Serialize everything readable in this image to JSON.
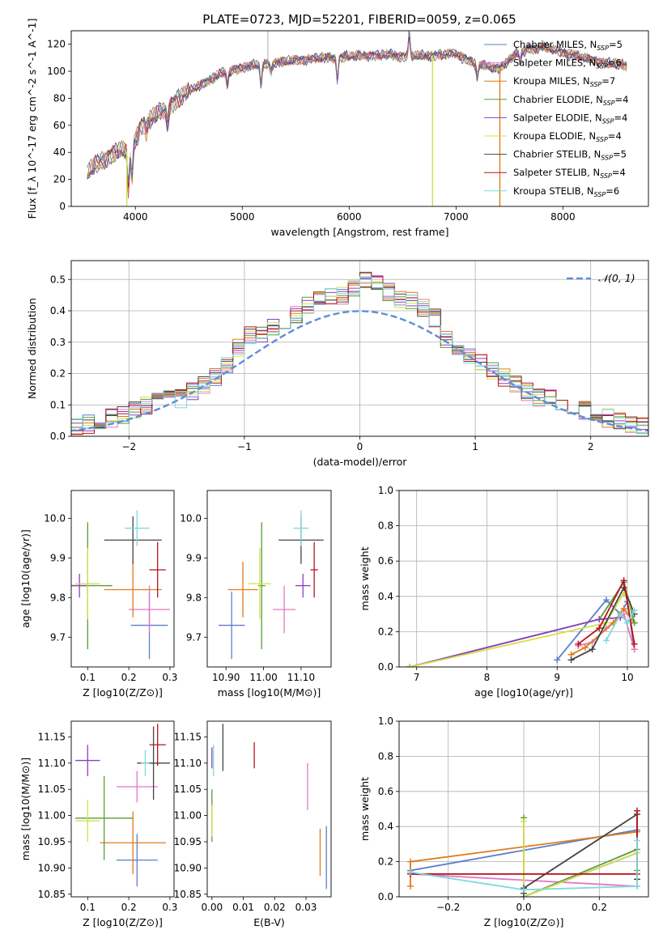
{
  "figure_title": "PLATE=0723, MJD=52201, FIBERID=0059, z=0.065",
  "models": [
    {
      "label": "Chabrier MILES, N$_{SSP}$=5",
      "name": "Chabrier MILES",
      "nssp": "5",
      "color": "#5b7ec9"
    },
    {
      "label": "Salpeter MILES, N$_{SSP}$=6",
      "name": "Salpeter MILES",
      "nssp": "6",
      "color": "#e377c2"
    },
    {
      "label": "Kroupa MILES, N$_{SSP}$=7",
      "name": "Kroupa MILES",
      "nssp": "7",
      "color": "#e07b1a"
    },
    {
      "label": "Chabrier ELODIE, N$_{SSP}$=4",
      "name": "Chabrier ELODIE",
      "nssp": "4",
      "color": "#5a9a3a"
    },
    {
      "label": "Salpeter ELODIE, N$_{SSP}$=4",
      "name": "Salpeter ELODIE",
      "nssp": "4",
      "color": "#8e3fbf"
    },
    {
      "label": "Kroupa ELODIE, N$_{SSP}$=4",
      "name": "Kroupa ELODIE",
      "nssp": "4",
      "color": "#d2e04a"
    },
    {
      "label": "Chabrier STELIB, N$_{SSP}$=5",
      "name": "Chabrier STELIB",
      "nssp": "5",
      "color": "#444444"
    },
    {
      "label": "Salpeter STELIB, N$_{SSP}$=4",
      "name": "Salpeter STELIB",
      "nssp": "4",
      "color": "#b5141c"
    },
    {
      "label": "Kroupa STELIB, N$_{SSP}$=6",
      "name": "Kroupa STELIB",
      "nssp": "6",
      "color": "#7fd8e0"
    }
  ],
  "chart_data": [
    {
      "id": "spectrum",
      "type": "line",
      "xlabel": "wavelength [Angstrom, rest frame]",
      "ylabel": "Flux [f_λ 10^-17 erg cm^-2 s^-1 A^-1]",
      "xlim": [
        3400,
        8800
      ],
      "ylim": [
        0,
        130
      ],
      "xticks": [
        4000,
        5000,
        6000,
        7000,
        8000
      ],
      "yticks": [
        0,
        20,
        40,
        60,
        80,
        100,
        120
      ],
      "grid": false,
      "legend": "top-right",
      "continuum": [
        [
          3550,
          25
        ],
        [
          3700,
          35
        ],
        [
          3850,
          42
        ],
        [
          3950,
          40
        ],
        [
          4050,
          60
        ],
        [
          4150,
          65
        ],
        [
          4250,
          70
        ],
        [
          4400,
          80
        ],
        [
          4600,
          90
        ],
        [
          4800,
          98
        ],
        [
          5000,
          103
        ],
        [
          5200,
          105
        ],
        [
          5400,
          107
        ],
        [
          5600,
          109
        ],
        [
          5800,
          110
        ],
        [
          6000,
          111
        ],
        [
          6200,
          112
        ],
        [
          6400,
          112
        ],
        [
          6600,
          111
        ],
        [
          6800,
          112
        ],
        [
          7000,
          113
        ],
        [
          7200,
          105
        ],
        [
          7400,
          102
        ],
        [
          7600,
          115
        ],
        [
          7800,
          118
        ],
        [
          8000,
          114
        ],
        [
          8200,
          110
        ],
        [
          8400,
          106
        ],
        [
          8600,
          104
        ]
      ],
      "features": [
        [
          3934,
          -30
        ],
        [
          3969,
          -22
        ],
        [
          4102,
          -8
        ],
        [
          4300,
          -12
        ],
        [
          4861,
          -10
        ],
        [
          5175,
          -14
        ],
        [
          5270,
          -6
        ],
        [
          5890,
          -16
        ],
        [
          6563,
          15
        ],
        [
          7200,
          -10
        ],
        [
          7600,
          -8
        ]
      ],
      "dropouts": [
        [
          3920,
          "#d2e04a"
        ],
        [
          6780,
          "#d2e04a"
        ],
        [
          7410,
          "#e07b1a"
        ]
      ],
      "spikes": [
        [
          5240,
          130
        ],
        [
          6580,
          117
        ]
      ]
    },
    {
      "id": "residual-hist",
      "type": "area",
      "xlabel": "(data-model)/error",
      "ylabel": "Normed distribution",
      "xlim": [
        -2.5,
        2.5
      ],
      "ylim": [
        0,
        0.56
      ],
      "xticks": [
        -2,
        -1,
        0,
        1,
        2
      ],
      "yticks": [
        0.0,
        0.1,
        0.2,
        0.3,
        0.4,
        0.5
      ],
      "grid": true,
      "legend": "top-right",
      "reference_curve": {
        "label": "𝒩(0, 1)",
        "mean": 0,
        "sigma": 1,
        "color": "#5b8fd9"
      },
      "bin_width": 0.1
    },
    {
      "id": "age-vs-Z",
      "type": "scatter",
      "xlabel": "Z [log10(Z/Z⊙)]",
      "ylabel": "age  [log10(age/yr)]",
      "xlim": [
        0.06,
        0.31
      ],
      "ylim": [
        9.625,
        10.07
      ],
      "xticks": [
        0.1,
        0.2,
        0.3
      ],
      "yticks": [
        9.7,
        9.8,
        9.9,
        10.0
      ],
      "grid": false,
      "points": [
        {
          "model": 0,
          "x": 0.25,
          "y": 9.73,
          "xerr": 0.045,
          "yerr": 0.085
        },
        {
          "model": 1,
          "x": 0.25,
          "y": 9.77,
          "xerr": 0.05,
          "yerr": 0.06
        },
        {
          "model": 2,
          "x": 0.21,
          "y": 9.82,
          "xerr": 0.07,
          "yerr": 0.07
        },
        {
          "model": 3,
          "x": 0.1,
          "y": 9.83,
          "xerr": 0.06,
          "yerr": 0.16
        },
        {
          "model": 4,
          "x": 0.08,
          "y": 9.83,
          "xerr": 0.02,
          "yerr": 0.03
        },
        {
          "model": 5,
          "x": 0.1,
          "y": 9.835,
          "xerr": 0.03,
          "yerr": 0.09
        },
        {
          "model": 6,
          "x": 0.21,
          "y": 9.945,
          "xerr": 0.07,
          "yerr": 0.06
        },
        {
          "model": 7,
          "x": 0.27,
          "y": 9.87,
          "xerr": 0.02,
          "yerr": 0.07
        },
        {
          "model": 8,
          "x": 0.22,
          "y": 9.975,
          "xerr": 0.03,
          "yerr": 0.045
        }
      ]
    },
    {
      "id": "age-vs-mass",
      "type": "scatter",
      "xlabel": "mass [log10(M/M⊙)]",
      "ylabel": "",
      "xlim": [
        10.85,
        11.18
      ],
      "ylim": [
        9.625,
        10.07
      ],
      "xticks": [
        10.9,
        11.0,
        11.1
      ],
      "yticks": [
        9.7,
        9.8,
        9.9,
        10.0
      ],
      "grid": false,
      "points": [
        {
          "model": 0,
          "x": 10.915,
          "y": 9.73,
          "xerr": 0.035,
          "yerr": 0.085
        },
        {
          "model": 1,
          "x": 11.055,
          "y": 9.77,
          "xerr": 0.03,
          "yerr": 0.06
        },
        {
          "model": 2,
          "x": 10.945,
          "y": 9.82,
          "xerr": 0.04,
          "yerr": 0.07
        },
        {
          "model": 3,
          "x": 10.995,
          "y": 9.83,
          "xerr": 0.01,
          "yerr": 0.16
        },
        {
          "model": 4,
          "x": 11.105,
          "y": 9.83,
          "xerr": 0.02,
          "yerr": 0.03
        },
        {
          "model": 5,
          "x": 10.99,
          "y": 9.835,
          "xerr": 0.03,
          "yerr": 0.09
        },
        {
          "model": 6,
          "x": 11.1,
          "y": 9.945,
          "xerr": 0.06,
          "yerr": 0.06
        },
        {
          "model": 7,
          "x": 11.135,
          "y": 9.87,
          "xerr": 0.01,
          "yerr": 0.07
        },
        {
          "model": 8,
          "x": 11.1,
          "y": 9.975,
          "xerr": 0.02,
          "yerr": 0.045
        }
      ]
    },
    {
      "id": "weight-vs-age",
      "type": "line",
      "xlabel": "age  [log10(age/yr)]",
      "ylabel": "mass weight",
      "xlim": [
        6.75,
        10.3
      ],
      "ylim": [
        0,
        1.0
      ],
      "xticks": [
        7,
        8,
        9,
        10
      ],
      "yticks": [
        0.0,
        0.2,
        0.4,
        0.6,
        0.8,
        1.0
      ],
      "grid": true,
      "series": [
        {
          "model": 0,
          "x": [
            9.0,
            9.7,
            9.9,
            10.0,
            10.1
          ],
          "y": [
            0.04,
            0.38,
            0.3,
            0.37,
            0.1
          ]
        },
        {
          "model": 1,
          "x": [
            9.3,
            9.5,
            9.7,
            9.95,
            10.1
          ],
          "y": [
            0.12,
            0.14,
            0.22,
            0.3,
            0.1
          ]
        },
        {
          "model": 2,
          "x": [
            9.2,
            9.4,
            9.8,
            9.95,
            10.1
          ],
          "y": [
            0.07,
            0.11,
            0.25,
            0.33,
            0.25
          ]
        },
        {
          "model": 3,
          "x": [
            6.9,
            9.6,
            9.95,
            10.1
          ],
          "y": [
            0.0,
            0.27,
            0.48,
            0.25
          ]
        },
        {
          "model": 4,
          "x": [
            6.9,
            9.6,
            9.9
          ],
          "y": [
            0.0,
            0.27,
            0.28
          ]
        },
        {
          "model": 5,
          "x": [
            6.9,
            9.7,
            9.95,
            10.1
          ],
          "y": [
            0.0,
            0.25,
            0.42,
            0.3
          ]
        },
        {
          "model": 6,
          "x": [
            9.2,
            9.5,
            9.95,
            10.1
          ],
          "y": [
            0.04,
            0.1,
            0.45,
            0.3
          ]
        },
        {
          "model": 7,
          "x": [
            9.3,
            9.6,
            9.95,
            10.1
          ],
          "y": [
            0.13,
            0.22,
            0.49,
            0.13
          ]
        },
        {
          "model": 8,
          "x": [
            9.7,
            9.9,
            10.0,
            10.1
          ],
          "y": [
            0.15,
            0.3,
            0.25,
            0.32
          ]
        }
      ]
    },
    {
      "id": "mass-vs-Z",
      "type": "scatter",
      "xlabel": "Z [log10(Z/Z⊙)]",
      "ylabel": "mass [log10(M/M⊙)]",
      "xlim": [
        0.06,
        0.31
      ],
      "ylim": [
        10.845,
        11.18
      ],
      "xticks": [
        0.1,
        0.2,
        0.3
      ],
      "yticks": [
        10.85,
        10.9,
        10.95,
        11.0,
        11.05,
        11.1,
        11.15
      ],
      "grid": false,
      "points": [
        {
          "model": 0,
          "x": 0.22,
          "y": 10.915,
          "xerr": 0.05,
          "yerr": 0.05
        },
        {
          "model": 1,
          "x": 0.22,
          "y": 11.055,
          "xerr": 0.05,
          "yerr": 0.03
        },
        {
          "model": 2,
          "x": 0.21,
          "y": 10.948,
          "xerr": 0.08,
          "yerr": 0.06
        },
        {
          "model": 3,
          "x": 0.14,
          "y": 10.995,
          "xerr": 0.07,
          "yerr": 0.08
        },
        {
          "model": 4,
          "x": 0.1,
          "y": 11.105,
          "xerr": 0.03,
          "yerr": 0.03
        },
        {
          "model": 5,
          "x": 0.1,
          "y": 10.99,
          "xerr": 0.03,
          "yerr": 0.04
        },
        {
          "model": 6,
          "x": 0.26,
          "y": 11.1,
          "xerr": 0.04,
          "yerr": 0.07
        },
        {
          "model": 7,
          "x": 0.27,
          "y": 11.135,
          "xerr": 0.02,
          "yerr": 0.04
        },
        {
          "model": 8,
          "x": 0.24,
          "y": 11.1,
          "xerr": 0.01,
          "yerr": 0.025
        }
      ]
    },
    {
      "id": "mass-vs-EBV",
      "type": "scatter",
      "xlabel": "E(B-V)",
      "ylabel": "",
      "xlim": [
        -0.0015,
        0.038
      ],
      "ylim": [
        10.845,
        11.18
      ],
      "xticks": [
        0.0,
        0.01,
        0.02,
        0.03
      ],
      "yticks": [
        10.85,
        10.9,
        10.95,
        11.0,
        11.05,
        11.1,
        11.15
      ],
      "grid": false,
      "points": [
        {
          "model": 0,
          "x": 0.0365,
          "y": 10.92,
          "xerr": 0,
          "yerr": 0.06
        },
        {
          "model": 1,
          "x": 0.0305,
          "y": 11.055,
          "xerr": 0,
          "yerr": 0.045
        },
        {
          "model": 2,
          "x": 0.0345,
          "y": 10.93,
          "xerr": 0,
          "yerr": 0.045
        },
        {
          "model": 3,
          "x": 0.0,
          "y": 11.0,
          "xerr": 0,
          "yerr": 0.05
        },
        {
          "model": 4,
          "x": 0.0,
          "y": 11.11,
          "xerr": 0,
          "yerr": 0.02
        },
        {
          "model": 5,
          "x": 0.0,
          "y": 10.99,
          "xerr": 0,
          "yerr": 0.03
        },
        {
          "model": 6,
          "x": 0.0035,
          "y": 11.13,
          "xerr": 0,
          "yerr": 0.045
        },
        {
          "model": 7,
          "x": 0.0135,
          "y": 11.115,
          "xerr": 0,
          "yerr": 0.025
        },
        {
          "model": 8,
          "x": 0.0005,
          "y": 11.105,
          "xerr": 0,
          "yerr": 0.03
        }
      ]
    },
    {
      "id": "weight-vs-Z",
      "type": "line",
      "xlabel": "Z [log10(Z/Z⊙)]",
      "ylabel": "mass weight",
      "xlim": [
        -0.33,
        0.33
      ],
      "ylim": [
        0,
        1.0
      ],
      "xticks": [
        -0.2,
        0.0,
        0.2
      ],
      "yticks": [
        0.0,
        0.2,
        0.4,
        0.6,
        0.8,
        1.0
      ],
      "grid": true,
      "series": [
        {
          "model": 0,
          "x": [
            -0.3,
            0.3,
            0.3
          ],
          "y": [
            0.15,
            0.38,
            0.1
          ]
        },
        {
          "model": 1,
          "x": [
            -0.3,
            0.3,
            0.3
          ],
          "y": [
            0.13,
            0.06,
            0.25
          ]
        },
        {
          "model": 2,
          "x": [
            -0.3,
            -0.3,
            0.3,
            0.3
          ],
          "y": [
            0.06,
            0.2,
            0.37,
            0.25
          ]
        },
        {
          "model": 3,
          "x": [
            0.0,
            0.0,
            0.3,
            0.3
          ],
          "y": [
            0.45,
            0.0,
            0.27,
            0.15
          ]
        },
        {
          "model": 4,
          "x": [
            0.0,
            0.3
          ],
          "y": [
            0.0,
            0.25
          ]
        },
        {
          "model": 5,
          "x": [
            0.0,
            0.0,
            0.3
          ],
          "y": [
            0.43,
            0.0,
            0.25
          ]
        },
        {
          "model": 6,
          "x": [
            0.0,
            0.0,
            0.3,
            0.3
          ],
          "y": [
            0.02,
            0.05,
            0.47,
            0.1
          ]
        },
        {
          "model": 7,
          "x": [
            -0.3,
            0.3,
            0.3
          ],
          "y": [
            0.13,
            0.13,
            0.49
          ]
        },
        {
          "model": 8,
          "x": [
            -0.3,
            0.0,
            0.3,
            0.3
          ],
          "y": [
            0.14,
            0.04,
            0.06,
            0.32
          ]
        }
      ]
    }
  ]
}
